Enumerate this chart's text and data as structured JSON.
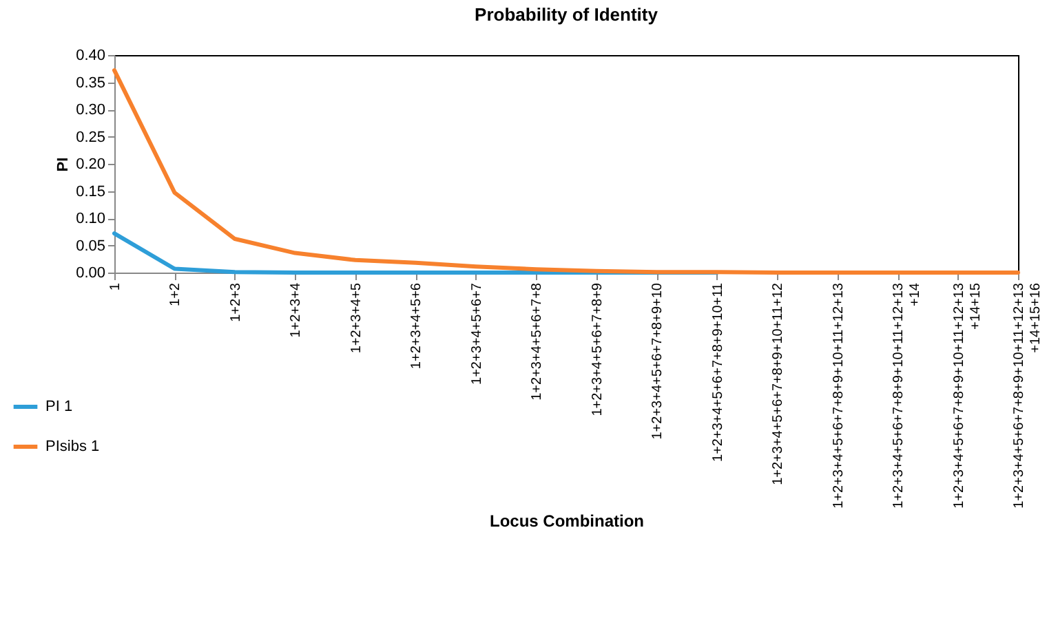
{
  "chart_data": {
    "type": "line",
    "title": "Probability of Identity",
    "xlabel": "Locus Combination",
    "ylabel": "PI",
    "categories": [
      "1",
      "1+2",
      "1+2+3",
      "1+2+3+4",
      "1+2+3+4+5",
      "1+2+3+4+5+6",
      "1+2+3+4+5+6+7",
      "1+2+3+4+5+6+7+8",
      "1+2+3+4+5+6+7+8+9",
      "1+2+3+4+5+6+7+8+9+10",
      "1+2+3+4+5+6+7+8+9+10+11",
      "1+2+3+4+5+6+7+8+9+10+11+12",
      "1+2+3+4+5+6+7+8+9+10+11+12+13",
      "1+2+3+4+5+6+7+8+9+10+11+12+13+14",
      "1+2+3+4+5+6+7+8+9+10+11+12+13+14+15",
      "1+2+3+4+5+6+7+8+9+10+11+12+13+14+15+16"
    ],
    "series": [
      {
        "name": "PI 1",
        "color": "#2e9ed8",
        "values": [
          0.072,
          0.007,
          0.001,
          0,
          0,
          0,
          0,
          0,
          0,
          0,
          0,
          null,
          null,
          null,
          null,
          null
        ]
      },
      {
        "name": "PIsibs 1",
        "color": "#f7812d",
        "values": [
          0.372,
          0.147,
          0.062,
          0.036,
          0.023,
          0.018,
          0.011,
          0.006,
          0.003,
          0.001,
          0.001,
          0,
          0,
          0,
          0,
          0
        ]
      }
    ],
    "ylim": [
      0,
      0.4
    ],
    "yticks": [
      {
        "value": 0,
        "label": "0.00"
      },
      {
        "value": 0.05,
        "label": "0.05"
      },
      {
        "value": 0.1,
        "label": "0.10"
      },
      {
        "value": 0.15,
        "label": "0.15"
      },
      {
        "value": 0.2,
        "label": "0.20"
      },
      {
        "value": 0.25,
        "label": "0.25"
      },
      {
        "value": 0.3,
        "label": "0.30"
      },
      {
        "value": 0.35,
        "label": "0.35"
      },
      {
        "value": 0.4,
        "label": "0.40"
      }
    ],
    "legend": "bottom left",
    "grid": false
  }
}
